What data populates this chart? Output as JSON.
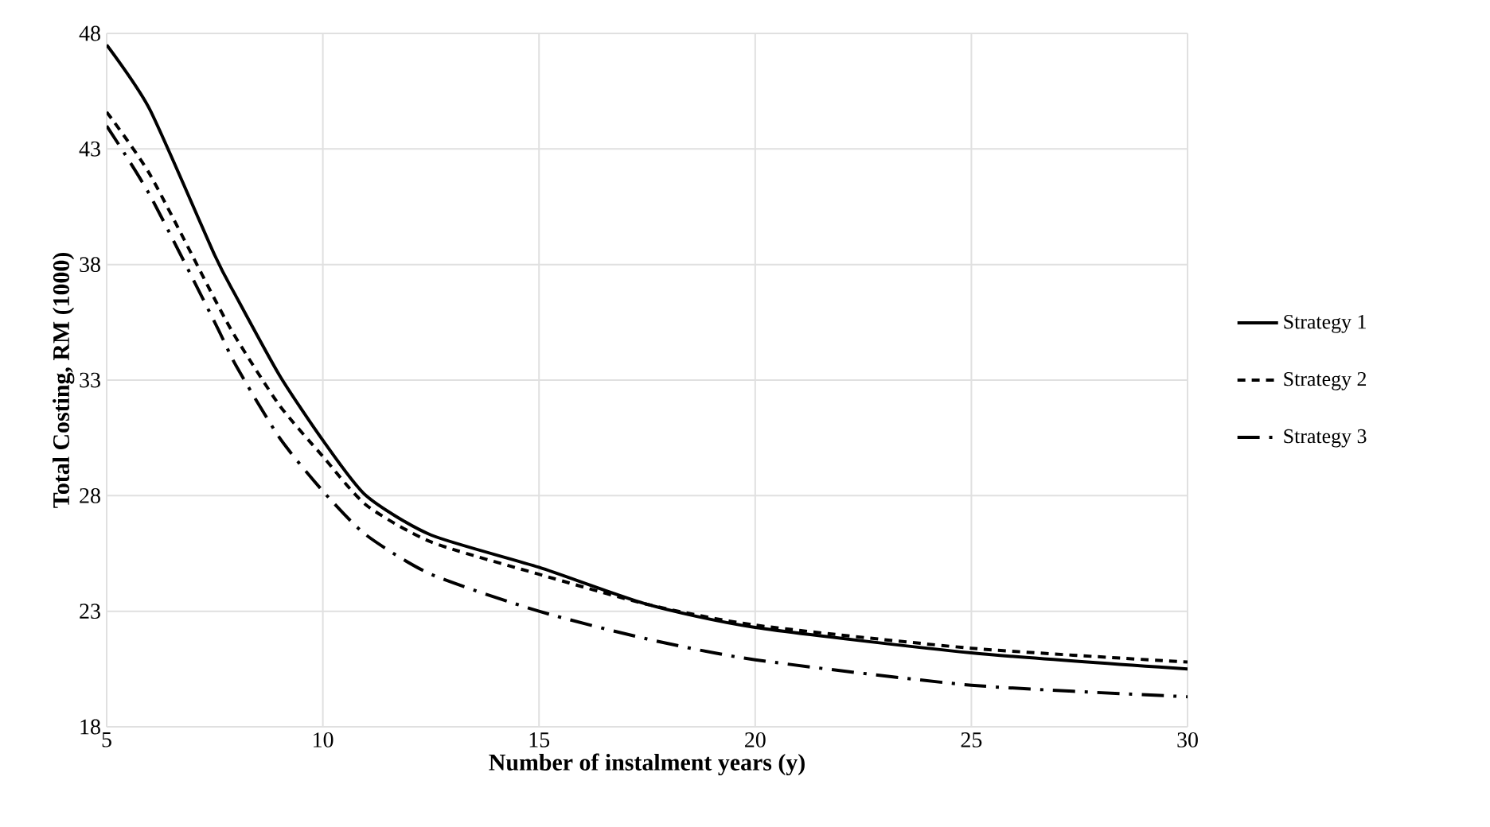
{
  "chart_data": {
    "type": "line",
    "xlabel": "Number of instalment years (y)",
    "ylabel": "Total Costing, RM (1000)",
    "xlim": [
      5,
      30
    ],
    "xticks": [
      5,
      10,
      15,
      20,
      25,
      30
    ],
    "ylim": [
      18,
      48
    ],
    "yticks": [
      18,
      23,
      28,
      33,
      38,
      43,
      48
    ],
    "grid": true,
    "legend": "right",
    "marker": "none",
    "series": [
      {
        "name": "Strategy 1",
        "color": "#000000",
        "line_style": "solid",
        "x": [
          5,
          6,
          7.5,
          8,
          9,
          10,
          11,
          12.5,
          15,
          17.5,
          20,
          25,
          30
        ],
        "values": [
          47.5,
          44.7,
          38.4,
          36.6,
          33.2,
          30.4,
          28.0,
          26.3,
          24.9,
          23.3,
          22.3,
          21.2,
          20.5
        ]
      },
      {
        "name": "Strategy 2",
        "color": "#000000",
        "line_style": "dashed",
        "x": [
          5,
          6,
          7.5,
          8,
          9,
          10,
          11,
          12.5,
          15,
          17.5,
          20,
          25,
          30
        ],
        "values": [
          44.6,
          41.9,
          36.5,
          34.8,
          31.9,
          29.7,
          27.6,
          26.0,
          24.6,
          23.3,
          22.4,
          21.4,
          20.8
        ]
      },
      {
        "name": "Strategy 3",
        "color": "#000000",
        "line_style": "dashdot",
        "x": [
          5,
          6,
          7.5,
          8,
          9,
          10,
          11,
          12.5,
          15,
          17.5,
          20,
          25,
          30
        ],
        "values": [
          44.0,
          41.0,
          35.5,
          33.6,
          30.5,
          28.2,
          26.3,
          24.6,
          23.0,
          21.8,
          20.9,
          19.8,
          19.3
        ]
      }
    ]
  }
}
